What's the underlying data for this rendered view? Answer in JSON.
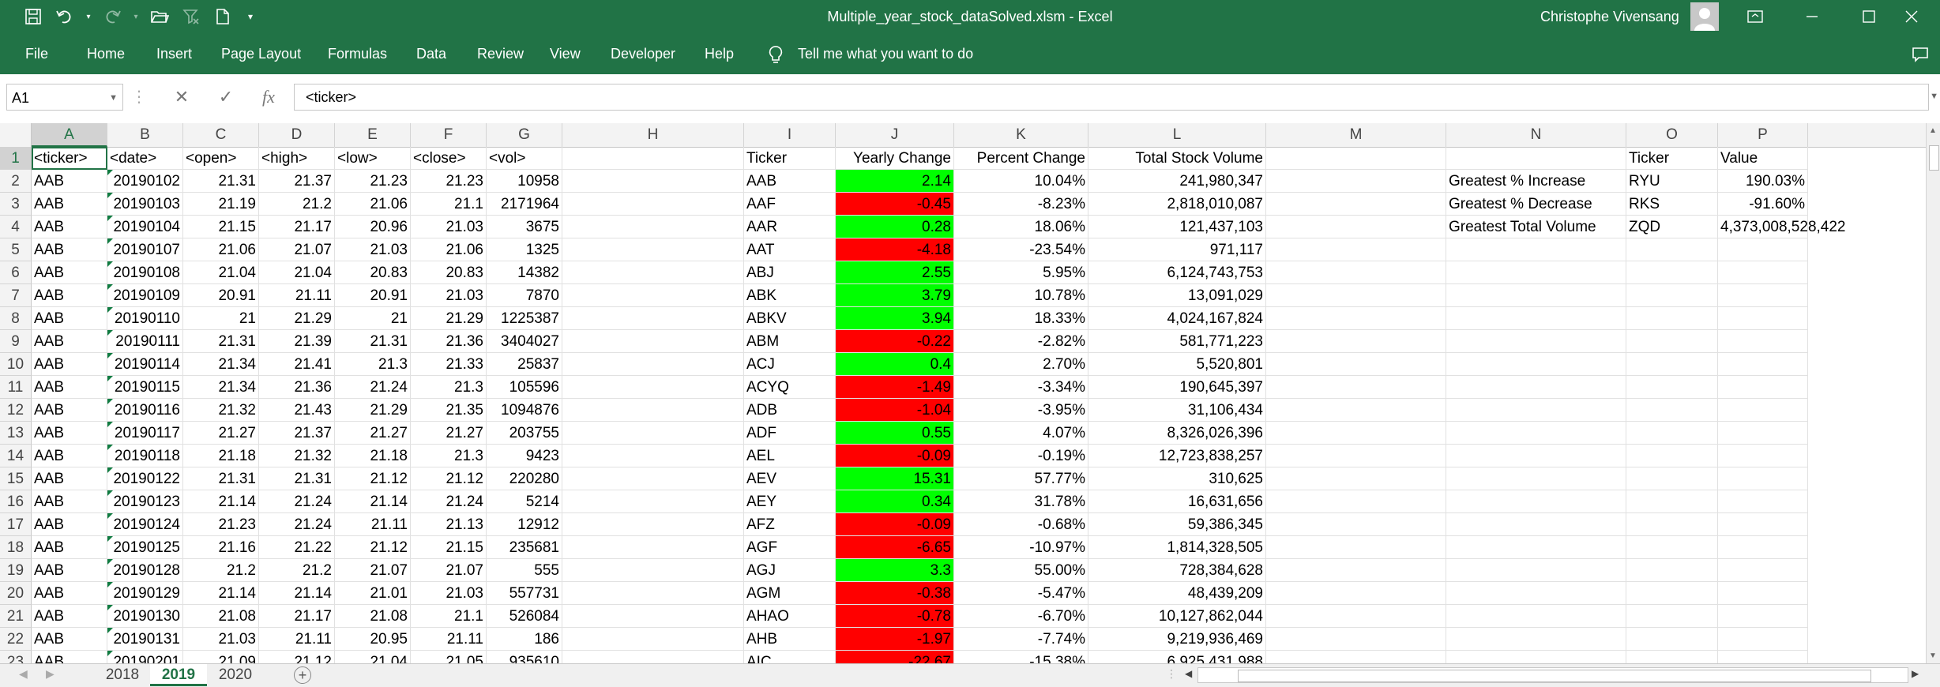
{
  "window": {
    "title": "Multiple_year_stock_dataSolved.xlsm  -  Excel",
    "user": "Christophe Vivensang"
  },
  "menu": [
    "File",
    "Home",
    "Insert",
    "Page Layout",
    "Formulas",
    "Data",
    "Review",
    "View",
    "Developer",
    "Help"
  ],
  "tell_me": "Tell me what you want to do",
  "formula_bar": {
    "name_box": "A1",
    "content": "<ticker>"
  },
  "columns": [
    "A",
    "B",
    "C",
    "D",
    "E",
    "F",
    "G",
    "H",
    "I",
    "J",
    "K",
    "L",
    "M",
    "N",
    "O",
    "P"
  ],
  "rows": [
    "1",
    "2",
    "3",
    "4",
    "5",
    "6",
    "7",
    "8",
    "9",
    "10",
    "11",
    "12",
    "13",
    "14",
    "15",
    "16",
    "17",
    "18",
    "19",
    "20",
    "21",
    "22",
    "23"
  ],
  "sheet": {
    "header": [
      "<ticker>",
      "<date>",
      "<open>",
      "<high>",
      "<low>",
      "<close>",
      "<vol>"
    ],
    "raw": [
      [
        "AAB",
        "20190102",
        "21.31",
        "21.37",
        "21.23",
        "21.23",
        "10958"
      ],
      [
        "AAB",
        "20190103",
        "21.19",
        "21.2",
        "21.06",
        "21.1",
        "2171964"
      ],
      [
        "AAB",
        "20190104",
        "21.15",
        "21.17",
        "20.96",
        "21.03",
        "3675"
      ],
      [
        "AAB",
        "20190107",
        "21.06",
        "21.07",
        "21.03",
        "21.06",
        "1325"
      ],
      [
        "AAB",
        "20190108",
        "21.04",
        "21.04",
        "20.83",
        "20.83",
        "14382"
      ],
      [
        "AAB",
        "20190109",
        "20.91",
        "21.11",
        "20.91",
        "21.03",
        "7870"
      ],
      [
        "AAB",
        "20190110",
        "21",
        "21.29",
        "21",
        "21.29",
        "1225387"
      ],
      [
        "AAB",
        "20190111",
        "21.31",
        "21.39",
        "21.31",
        "21.36",
        "3404027"
      ],
      [
        "AAB",
        "20190114",
        "21.34",
        "21.41",
        "21.3",
        "21.33",
        "25837"
      ],
      [
        "AAB",
        "20190115",
        "21.34",
        "21.36",
        "21.24",
        "21.3",
        "105596"
      ],
      [
        "AAB",
        "20190116",
        "21.32",
        "21.43",
        "21.29",
        "21.35",
        "1094876"
      ],
      [
        "AAB",
        "20190117",
        "21.27",
        "21.37",
        "21.27",
        "21.27",
        "203755"
      ],
      [
        "AAB",
        "20190118",
        "21.18",
        "21.32",
        "21.18",
        "21.3",
        "9423"
      ],
      [
        "AAB",
        "20190122",
        "21.31",
        "21.31",
        "21.12",
        "21.12",
        "220280"
      ],
      [
        "AAB",
        "20190123",
        "21.14",
        "21.24",
        "21.14",
        "21.24",
        "5214"
      ],
      [
        "AAB",
        "20190124",
        "21.23",
        "21.24",
        "21.11",
        "21.13",
        "12912"
      ],
      [
        "AAB",
        "20190125",
        "21.16",
        "21.22",
        "21.12",
        "21.15",
        "235681"
      ],
      [
        "AAB",
        "20190128",
        "21.2",
        "21.2",
        "21.07",
        "21.07",
        "555"
      ],
      [
        "AAB",
        "20190129",
        "21.14",
        "21.14",
        "21.01",
        "21.03",
        "557731"
      ],
      [
        "AAB",
        "20190130",
        "21.08",
        "21.17",
        "21.08",
        "21.1",
        "526084"
      ],
      [
        "AAB",
        "20190131",
        "21.03",
        "21.11",
        "20.95",
        "21.11",
        "186"
      ],
      [
        "AAB",
        "20190201",
        "21.09",
        "21.12",
        "21.04",
        "21.05",
        "935610"
      ]
    ],
    "summary_header": [
      "Ticker",
      "Yearly Change",
      "Percent Change",
      "Total Stock Volume"
    ],
    "summary": [
      [
        "AAB",
        "2.14",
        "10.04%",
        "241,980,347",
        "green"
      ],
      [
        "AAF",
        "-0.45",
        "-8.23%",
        "2,818,010,087",
        "red"
      ],
      [
        "AAR",
        "0.28",
        "18.06%",
        "121,437,103",
        "green"
      ],
      [
        "AAT",
        "-4.18",
        "-23.54%",
        "971,117",
        "red"
      ],
      [
        "ABJ",
        "2.55",
        "5.95%",
        "6,124,743,753",
        "green"
      ],
      [
        "ABK",
        "3.79",
        "10.78%",
        "13,091,029",
        "green"
      ],
      [
        "ABKV",
        "3.94",
        "18.33%",
        "4,024,167,824",
        "green"
      ],
      [
        "ABM",
        "-0.22",
        "-2.82%",
        "581,771,223",
        "red"
      ],
      [
        "ACJ",
        "0.4",
        "2.70%",
        "5,520,801",
        "green"
      ],
      [
        "ACYQ",
        "-1.49",
        "-3.34%",
        "190,645,397",
        "red"
      ],
      [
        "ADB",
        "-1.04",
        "-3.95%",
        "31,106,434",
        "red"
      ],
      [
        "ADF",
        "0.55",
        "4.07%",
        "8,326,026,396",
        "green"
      ],
      [
        "AEL",
        "-0.09",
        "-0.19%",
        "12,723,838,257",
        "red"
      ],
      [
        "AEV",
        "15.31",
        "57.77%",
        "310,625",
        "green"
      ],
      [
        "AEY",
        "0.34",
        "31.78%",
        "16,631,656",
        "green"
      ],
      [
        "AFZ",
        "-0.09",
        "-0.68%",
        "59,386,345",
        "red"
      ],
      [
        "AGF",
        "-6.65",
        "-10.97%",
        "1,814,328,505",
        "red"
      ],
      [
        "AGJ",
        "3.3",
        "55.00%",
        "728,384,628",
        "green"
      ],
      [
        "AGM",
        "-0.38",
        "-5.47%",
        "48,439,209",
        "red"
      ],
      [
        "AHAO",
        "-0.78",
        "-6.70%",
        "10,127,862,044",
        "red"
      ],
      [
        "AHB",
        "-1.97",
        "-7.74%",
        "9,219,936,469",
        "red"
      ],
      [
        "AIC",
        "-22.67",
        "-15.38%",
        "6,925,431,988",
        "red"
      ]
    ],
    "greatest_header": [
      "Ticker",
      "Value"
    ],
    "greatest": [
      [
        "Greatest % Increase",
        "RYU",
        "190.03%"
      ],
      [
        "Greatest % Decrease",
        "RKS",
        "-91.60%"
      ],
      [
        "Greatest Total Volume",
        "ZQD",
        "4,373,008,528,422"
      ]
    ]
  },
  "sheet_tabs": [
    "2018",
    "2019",
    "2020"
  ],
  "active_tab": "2019",
  "colors": {
    "excel_green": "#217346",
    "positive": "#00ff00",
    "negative": "#ff0000"
  }
}
